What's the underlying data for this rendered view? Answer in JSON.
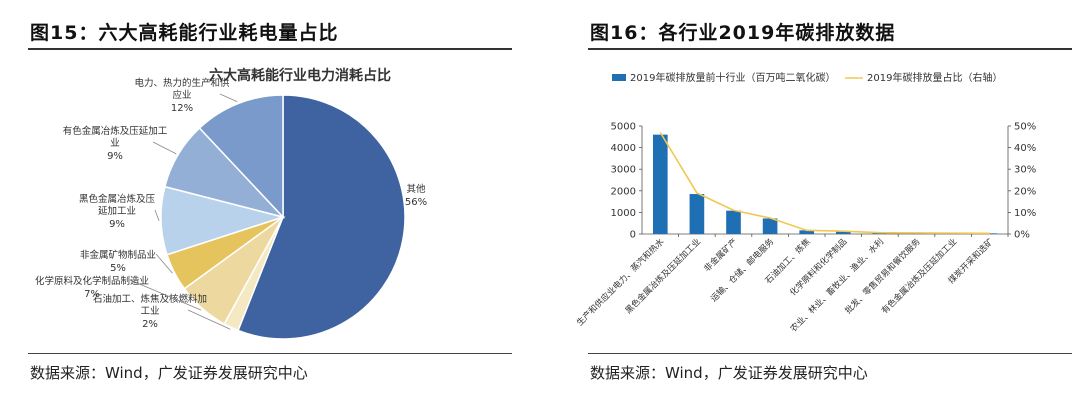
{
  "left": {
    "title": "图15：六大高耗能行业耗电量占比",
    "source": "数据来源：Wind，广发证券发展研究中心",
    "chart_data": {
      "type": "pie",
      "title": "六大高耗能行业电力消耗占比",
      "slices": [
        {
          "label": "其他",
          "pct_label": "56%",
          "value": 56,
          "color": "#3F63A0"
        },
        {
          "label": "石油加工、炼焦及核燃料加工业",
          "pct_label": "2%",
          "value": 2,
          "color": "#F5E9C4"
        },
        {
          "label": "化学原料及化学制品制造业",
          "pct_label": "7%",
          "value": 7,
          "color": "#EDD9A0"
        },
        {
          "label": "非金属矿物制品业",
          "pct_label": "5%",
          "value": 5,
          "color": "#E5C45E"
        },
        {
          "label": "黑色金属冶炼及压延加工业",
          "pct_label": "9%",
          "value": 9,
          "color": "#B9D2EC"
        },
        {
          "label": "有色金属冶炼及压延加工业",
          "pct_label": "9%",
          "value": 9,
          "color": "#93AFD6"
        },
        {
          "label": "电力、热力的生产和供应业",
          "pct_label": "12%",
          "value": 12,
          "color": "#7A9ACB"
        }
      ]
    }
  },
  "right": {
    "title": "图16：各行业2019年碳排放数据",
    "source": "数据来源：Wind，广发证券发展研究中心",
    "chart_data": {
      "type": "bar",
      "categories": [
        "生产和供应业电力、蒸汽和热水",
        "黑色金属冶炼及压延加工业",
        "非金属矿产",
        "运输、仓储、邮电服务",
        "石油加工、炼焦",
        "化学原料和化学制品",
        "农业、林业、畜牧业、渔业、水利",
        "批发、零售贸易和餐饮服务",
        "有色金属冶炼及压延加工业",
        "煤炭开采和选矿"
      ],
      "series": [
        {
          "name": "2019年碳排放量前十行业（百万吨二氧化碳）",
          "type": "bar",
          "axis": "left",
          "color": "#1F6FB4",
          "values": [
            4600,
            1850,
            1080,
            720,
            170,
            130,
            60,
            50,
            40,
            30
          ]
        },
        {
          "name": "2019年碳排放量占比（右轴）",
          "type": "line",
          "axis": "right",
          "color": "#F0C850",
          "values": [
            47,
            19,
            11,
            7.4,
            1.7,
            1.3,
            0.6,
            0.5,
            0.4,
            0.3
          ]
        }
      ],
      "ylim_left": [
        0,
        5000
      ],
      "yticks_left": [
        "0",
        "1000",
        "2000",
        "3000",
        "4000",
        "5000"
      ],
      "ylim_right": [
        0,
        50
      ],
      "yticks_right": [
        "0%",
        "10%",
        "20%",
        "30%",
        "40%",
        "50%"
      ],
      "legend": "top"
    }
  }
}
